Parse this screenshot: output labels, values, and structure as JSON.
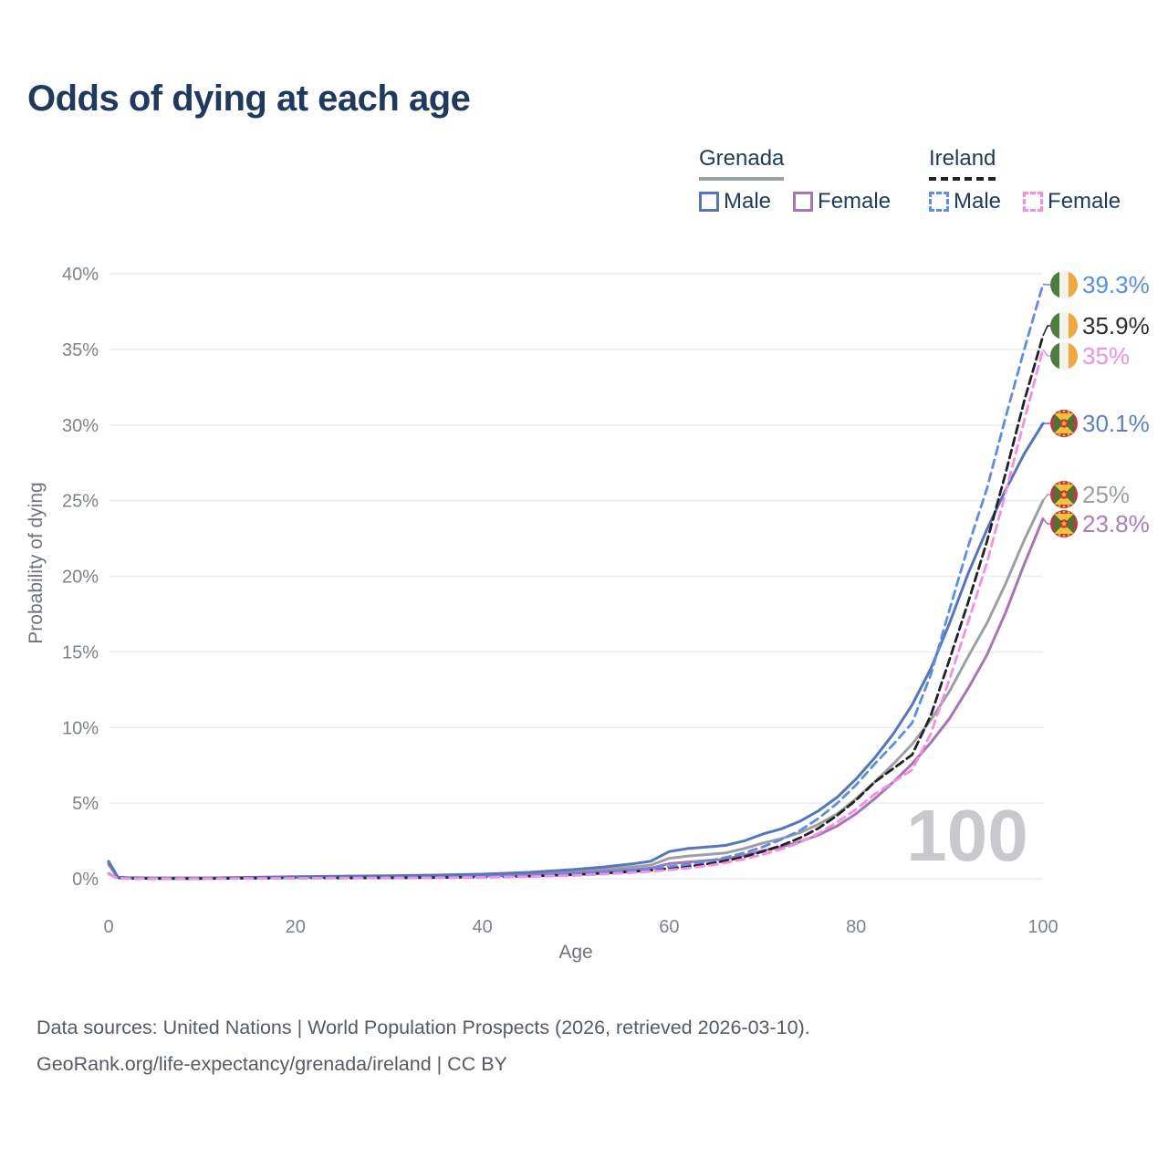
{
  "title": "Odds of dying at each age",
  "legend": {
    "grenada": {
      "label": "Grenada",
      "male": "Male",
      "female": "Female"
    },
    "ireland": {
      "label": "Ireland",
      "male": "Male",
      "female": "Female"
    }
  },
  "footer": {
    "line1": "Data sources: United Nations | World Population Prospects (2026, retrieved 2026-03-10).",
    "line2": "GeoRank.org/life-expectancy/grenada/ireland | CC BY"
  },
  "colors": {
    "title": "#1e3a5f",
    "axis_text": "#7d838b",
    "grid": "#ebebeb",
    "watermark": "#c7c9cd",
    "footer": "#555b63",
    "ireland_flag": [
      "#4d7c3f",
      "#f4f2ec",
      "#f0a83e"
    ],
    "grenada_flag": {
      "red": "#ce3138",
      "green": "#3f7a38",
      "yellow": "#f2c23a"
    }
  },
  "chart_data": {
    "type": "line",
    "title": "Odds of dying at each age",
    "xlabel": "Age",
    "ylabel": "Probability of dying",
    "xlim": [
      0,
      100
    ],
    "ylim": [
      0,
      40
    ],
    "x_ticks": [
      0,
      20,
      40,
      60,
      80,
      100
    ],
    "y_ticks": [
      "0%",
      "5%",
      "10%",
      "15%",
      "20%",
      "25%",
      "30%",
      "35%",
      "40%"
    ],
    "grid": "horizontal",
    "legend_position": "top-right",
    "hover_age_indicator": "100",
    "ages": [
      0,
      1,
      2,
      5,
      10,
      15,
      20,
      25,
      30,
      35,
      40,
      45,
      50,
      53,
      56,
      58,
      60,
      62,
      64,
      66,
      68,
      70,
      72,
      74,
      76,
      78,
      80,
      82,
      84,
      86,
      88,
      90,
      92,
      94,
      96,
      98,
      100
    ],
    "series": [
      {
        "id": "grenada-all",
        "name": "Grenada",
        "country": "Grenada",
        "sex": "Both sexes",
        "style": "solid",
        "color": "#9aa0a4",
        "flag": "grenada",
        "end_label": "25%",
        "end_label_color": "#9aa0a4",
        "end_value": 25.0,
        "values": [
          1.05,
          0.09,
          0.06,
          0.05,
          0.05,
          0.07,
          0.1,
          0.13,
          0.15,
          0.18,
          0.24,
          0.34,
          0.5,
          0.62,
          0.78,
          0.9,
          1.35,
          1.5,
          1.6,
          1.7,
          2.0,
          2.35,
          2.65,
          3.05,
          3.6,
          4.3,
          5.3,
          6.4,
          7.6,
          8.9,
          10.5,
          12.4,
          14.7,
          16.9,
          19.5,
          22.4,
          25.0
        ]
      },
      {
        "id": "grenada-female",
        "name": "Grenada Female",
        "country": "Grenada",
        "sex": "Female",
        "style": "solid",
        "color": "#a874b8",
        "flag": "grenada",
        "end_label": "23.8%",
        "end_label_color": "#a87fc4",
        "end_value": 23.8,
        "values": [
          0.95,
          0.08,
          0.05,
          0.04,
          0.04,
          0.05,
          0.07,
          0.09,
          0.11,
          0.13,
          0.18,
          0.26,
          0.38,
          0.48,
          0.6,
          0.7,
          1.0,
          1.1,
          1.2,
          1.3,
          1.55,
          1.85,
          2.1,
          2.45,
          2.9,
          3.5,
          4.3,
          5.3,
          6.4,
          7.6,
          9.0,
          10.6,
          12.6,
          14.8,
          17.6,
          20.8,
          23.8
        ]
      },
      {
        "id": "grenada-male",
        "name": "Grenada Male",
        "country": "Grenada",
        "sex": "Male",
        "style": "solid",
        "color": "#5277c0",
        "flag": "grenada",
        "end_label": "30.1%",
        "end_label_color": "#5b7fd0",
        "end_value": 30.1,
        "values": [
          1.15,
          0.1,
          0.07,
          0.05,
          0.05,
          0.09,
          0.13,
          0.17,
          0.2,
          0.24,
          0.3,
          0.42,
          0.62,
          0.78,
          0.98,
          1.15,
          1.8,
          2.0,
          2.1,
          2.2,
          2.5,
          2.95,
          3.3,
          3.8,
          4.5,
          5.4,
          6.6,
          8.0,
          9.6,
          11.5,
          13.9,
          16.9,
          20.2,
          23.1,
          25.7,
          28.1,
          30.1
        ]
      },
      {
        "id": "ireland-all",
        "name": "Ireland",
        "country": "Ireland",
        "sex": "Both sexes",
        "style": "dashed",
        "color": "#222222",
        "flag": "ireland",
        "end_label": "35.9%",
        "end_label_color": "#2e2e2e",
        "end_value": 35.9,
        "values": [
          0.33,
          0.03,
          0.02,
          0.01,
          0.01,
          0.03,
          0.04,
          0.05,
          0.06,
          0.08,
          0.11,
          0.17,
          0.27,
          0.36,
          0.47,
          0.56,
          0.68,
          0.8,
          0.97,
          1.18,
          1.45,
          1.8,
          2.2,
          2.7,
          3.35,
          4.2,
          5.2,
          6.4,
          7.3,
          8.2,
          10.8,
          14.5,
          18.3,
          22.3,
          26.8,
          31.6,
          35.9
        ]
      },
      {
        "id": "ireland-male",
        "name": "Ireland Male",
        "country": "Ireland",
        "sex": "Male",
        "style": "dashed",
        "color": "#5b8cee",
        "flag": "ireland",
        "end_label": "39.3%",
        "end_label_color": "#548ef2",
        "end_value": 39.3,
        "values": [
          0.35,
          0.03,
          0.02,
          0.01,
          0.01,
          0.03,
          0.05,
          0.06,
          0.07,
          0.09,
          0.13,
          0.2,
          0.32,
          0.42,
          0.55,
          0.66,
          0.8,
          0.95,
          1.15,
          1.4,
          1.7,
          2.1,
          2.6,
          3.2,
          4.0,
          5.0,
          6.2,
          7.6,
          8.9,
          10.3,
          13.5,
          17.8,
          22.0,
          25.8,
          30.5,
          35.0,
          39.3
        ]
      },
      {
        "id": "ireland-female",
        "name": "Ireland Female",
        "country": "Ireland",
        "sex": "Female",
        "style": "dashed",
        "color": "#f98ce3",
        "flag": "ireland",
        "end_label": "35%",
        "end_label_color": "#fb8ce0",
        "end_value": 35.0,
        "values": [
          0.3,
          0.03,
          0.02,
          0.01,
          0.01,
          0.02,
          0.03,
          0.04,
          0.05,
          0.06,
          0.09,
          0.14,
          0.22,
          0.3,
          0.4,
          0.48,
          0.58,
          0.7,
          0.85,
          1.05,
          1.3,
          1.6,
          1.95,
          2.4,
          3.0,
          3.75,
          4.6,
          5.6,
          6.4,
          7.2,
          9.6,
          13.2,
          17.0,
          20.9,
          25.5,
          30.3,
          35.0
        ]
      }
    ]
  }
}
